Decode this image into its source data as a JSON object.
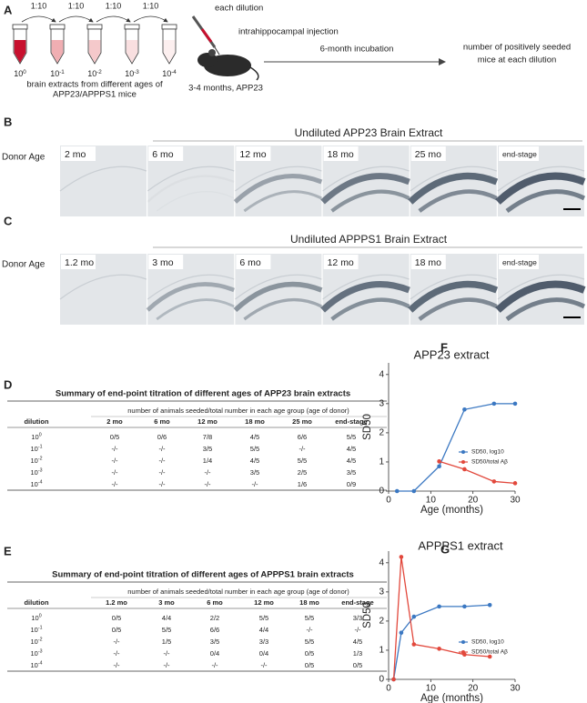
{
  "panel_labels": [
    "A",
    "B",
    "C",
    "D",
    "E",
    "F",
    "G"
  ],
  "schematic": {
    "ratios": [
      "1:10",
      "1:10",
      "1:10",
      "1:10"
    ],
    "tubes": [
      {
        "base": "10",
        "exponent": "0"
      },
      {
        "base": "10",
        "exponent": "-1"
      },
      {
        "base": "10",
        "exponent": "-2"
      },
      {
        "base": "10",
        "exponent": "-3"
      },
      {
        "base": "10",
        "exponent": "-4"
      }
    ],
    "extract_note": [
      "brain extracts from different ages of",
      "APP23/APPPS1 mice"
    ],
    "each_dilution": "each dilution",
    "injection": "intrahippocampal injection",
    "recipients": "3-4 months, APP23",
    "incubation": "6-month incubation",
    "readout": [
      "number of positively seeded",
      "mice at each dilution"
    ]
  },
  "histology": [
    {
      "title": "Undiluted APP23 Brain Extract",
      "row_label": "Donor Age",
      "ages": [
        "2 mo",
        "6 mo",
        "12 mo",
        "18 mo",
        "25 mo",
        "end-stage"
      ]
    },
    {
      "title": "Undiluted APPPS1 Brain Extract",
      "row_label": "Donor Age",
      "ages": [
        "1.2 mo",
        "3 mo",
        "6 mo",
        "12 mo",
        "18 mo",
        "end-stage"
      ]
    }
  ],
  "tables": [
    {
      "title": "Summary of end-point titration of different ages of APP23 brain extracts",
      "group_header": "number of animals seeded/total number in each  age group (age of donor)",
      "columns": [
        "dilution",
        "2 mo",
        "6 mo",
        "12 mo",
        "18 mo",
        "25 mo",
        "end-stage"
      ],
      "rows": [
        {
          "dilution": {
            "base": "10",
            "exponent": "0"
          },
          "cells": [
            "0/5",
            "0/6",
            "7/8",
            "4/5",
            "6/6",
            "5/5"
          ]
        },
        {
          "dilution": {
            "base": "10",
            "exponent": "-1"
          },
          "cells": [
            "-/-",
            "-/-",
            "3/5",
            "5/5",
            "-/-",
            "4/5"
          ]
        },
        {
          "dilution": {
            "base": "10",
            "exponent": "-2"
          },
          "cells": [
            "-/-",
            "-/-",
            "1/4",
            "4/5",
            "5/5",
            "4/5"
          ]
        },
        {
          "dilution": {
            "base": "10",
            "exponent": "-3"
          },
          "cells": [
            "-/-",
            "-/-",
            "-/-",
            "3/5",
            "2/5",
            "3/5"
          ]
        },
        {
          "dilution": {
            "base": "10",
            "exponent": "-4"
          },
          "cells": [
            "-/-",
            "-/-",
            "-/-",
            "-/-",
            "1/6",
            "0/9"
          ]
        }
      ]
    },
    {
      "title": "Summary of end-point titration of different ages of APPPS1 brain extracts",
      "group_header": "number of animals seeded/total number in each  age group (age of donor)",
      "columns": [
        "dilution",
        "1.2 mo",
        "3 mo",
        "6 mo",
        "12 mo",
        "18 mo",
        "end-stage"
      ],
      "rows": [
        {
          "dilution": {
            "base": "10",
            "exponent": "0"
          },
          "cells": [
            "0/5",
            "4/4",
            "2/2",
            "5/5",
            "5/5",
            "3/3"
          ]
        },
        {
          "dilution": {
            "base": "10",
            "exponent": "-1"
          },
          "cells": [
            "0/5",
            "5/5",
            "6/6",
            "4/4",
            "-/-",
            "-/-"
          ]
        },
        {
          "dilution": {
            "base": "10",
            "exponent": "-2"
          },
          "cells": [
            "-/-",
            "1/5",
            "3/5",
            "3/3",
            "5/5",
            "4/5"
          ]
        },
        {
          "dilution": {
            "base": "10",
            "exponent": "-3"
          },
          "cells": [
            "-/-",
            "-/-",
            "0/4",
            "0/4",
            "0/5",
            "1/3"
          ]
        },
        {
          "dilution": {
            "base": "10",
            "exponent": "-4"
          },
          "cells": [
            "-/-",
            "-/-",
            "-/-",
            "-/-",
            "0/5",
            "0/5"
          ]
        }
      ]
    }
  ],
  "chart_data": [
    {
      "type": "line",
      "title": "APP23 extract",
      "xlabel": "Age (months)",
      "ylabel": "SD50",
      "xlim": [
        0,
        30
      ],
      "xticks": [
        0,
        10,
        20,
        30
      ],
      "ylim": [
        0,
        4.4
      ],
      "yticks": [
        0,
        1,
        2,
        3,
        4
      ],
      "legend": "right",
      "marker": "circle",
      "series": [
        {
          "name": "SD50, log10",
          "color": "#3b78c2",
          "x": [
            2,
            6,
            12,
            18,
            25,
            30
          ],
          "values": [
            0,
            0,
            0.85,
            2.8,
            3,
            3
          ]
        },
        {
          "name": "SD50/total Aβ",
          "color": "#e2483c",
          "x": [
            12,
            18,
            25,
            30
          ],
          "values": [
            1.02,
            0.75,
            0.33,
            0.27
          ]
        }
      ]
    },
    {
      "type": "line",
      "title": "APPPS1 extract",
      "xlabel": "Age (months)",
      "ylabel": "SD50",
      "xlim": [
        0,
        30
      ],
      "xticks": [
        0,
        10,
        20,
        30
      ],
      "ylim": [
        0,
        4.4
      ],
      "yticks": [
        0,
        1,
        2,
        3,
        4
      ],
      "legend": "right",
      "marker": "circle",
      "series": [
        {
          "name": "SD50, log10",
          "color": "#3b78c2",
          "x": [
            1.2,
            3,
            6,
            12,
            18,
            24
          ],
          "values": [
            0,
            1.6,
            2.15,
            2.5,
            2.5,
            2.55
          ]
        },
        {
          "name": "SD50/total Aβ",
          "color": "#e2483c",
          "x": [
            1.2,
            3,
            6,
            12,
            18,
            24
          ],
          "values": [
            0,
            4.2,
            1.2,
            1.05,
            0.85,
            0.78
          ]
        }
      ]
    }
  ]
}
